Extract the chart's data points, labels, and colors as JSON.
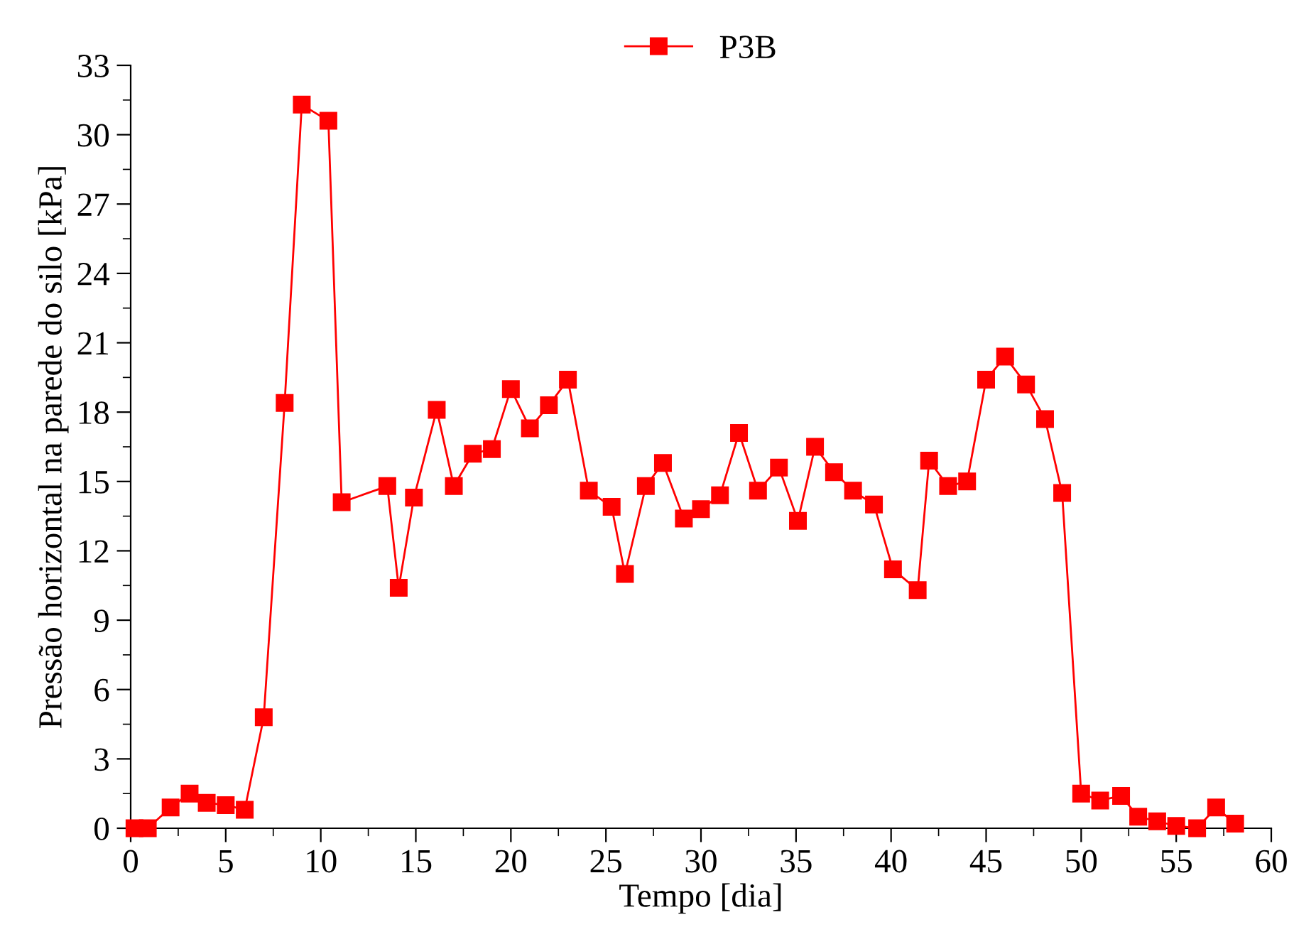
{
  "chart_data": {
    "type": "line",
    "xlabel": "Tempo [dia]",
    "ylabel": "Pressão horizontal na parede do silo [kPa]",
    "x": [
      0.2,
      0.9,
      2.1,
      3.1,
      4.0,
      5.0,
      6.0,
      7.0,
      8.1,
      9.0,
      10.4,
      11.1,
      13.5,
      14.1,
      14.9,
      16.1,
      17.0,
      18.0,
      19.0,
      20.0,
      21.0,
      22.0,
      23.0,
      24.1,
      25.3,
      26.0,
      27.1,
      28.0,
      29.1,
      30.0,
      31.0,
      32.0,
      33.0,
      34.1,
      35.1,
      36.0,
      37.0,
      38.0,
      39.1,
      40.1,
      41.4,
      42.0,
      43.0,
      44.0,
      45.0,
      46.0,
      47.1,
      48.1,
      49.0,
      50.0,
      51.0,
      52.1,
      53.0,
      54.0,
      55.0,
      56.1,
      57.1,
      58.1
    ],
    "series": [
      {
        "name": "P3B",
        "color": "#ff0000",
        "values": [
          0,
          0,
          0.9,
          1.5,
          1.1,
          1.0,
          0.8,
          4.8,
          18.4,
          31.3,
          30.6,
          14.1,
          14.8,
          10.4,
          14.3,
          18.1,
          14.8,
          16.2,
          16.4,
          19.0,
          17.3,
          18.3,
          19.4,
          14.6,
          13.9,
          11.0,
          14.8,
          15.8,
          13.4,
          13.8,
          14.4,
          17.1,
          14.6,
          15.6,
          13.3,
          16.5,
          15.4,
          14.6,
          14.0,
          11.2,
          10.3,
          15.9,
          14.8,
          15.0,
          19.4,
          20.4,
          19.2,
          17.7,
          14.5,
          1.5,
          1.2,
          1.4,
          0.5,
          0.3,
          0.1,
          0.0,
          0.9,
          0.2
        ]
      }
    ],
    "xlim": [
      0,
      60
    ],
    "xticks": [
      0,
      5,
      10,
      15,
      20,
      25,
      30,
      35,
      40,
      45,
      50,
      55,
      60
    ],
    "ylim": [
      0,
      33
    ],
    "yticks": [
      0,
      3,
      6,
      9,
      12,
      15,
      18,
      21,
      24,
      27,
      30,
      33
    ],
    "marker": "square",
    "line_style": "solid",
    "grid": false,
    "legend": "top"
  }
}
